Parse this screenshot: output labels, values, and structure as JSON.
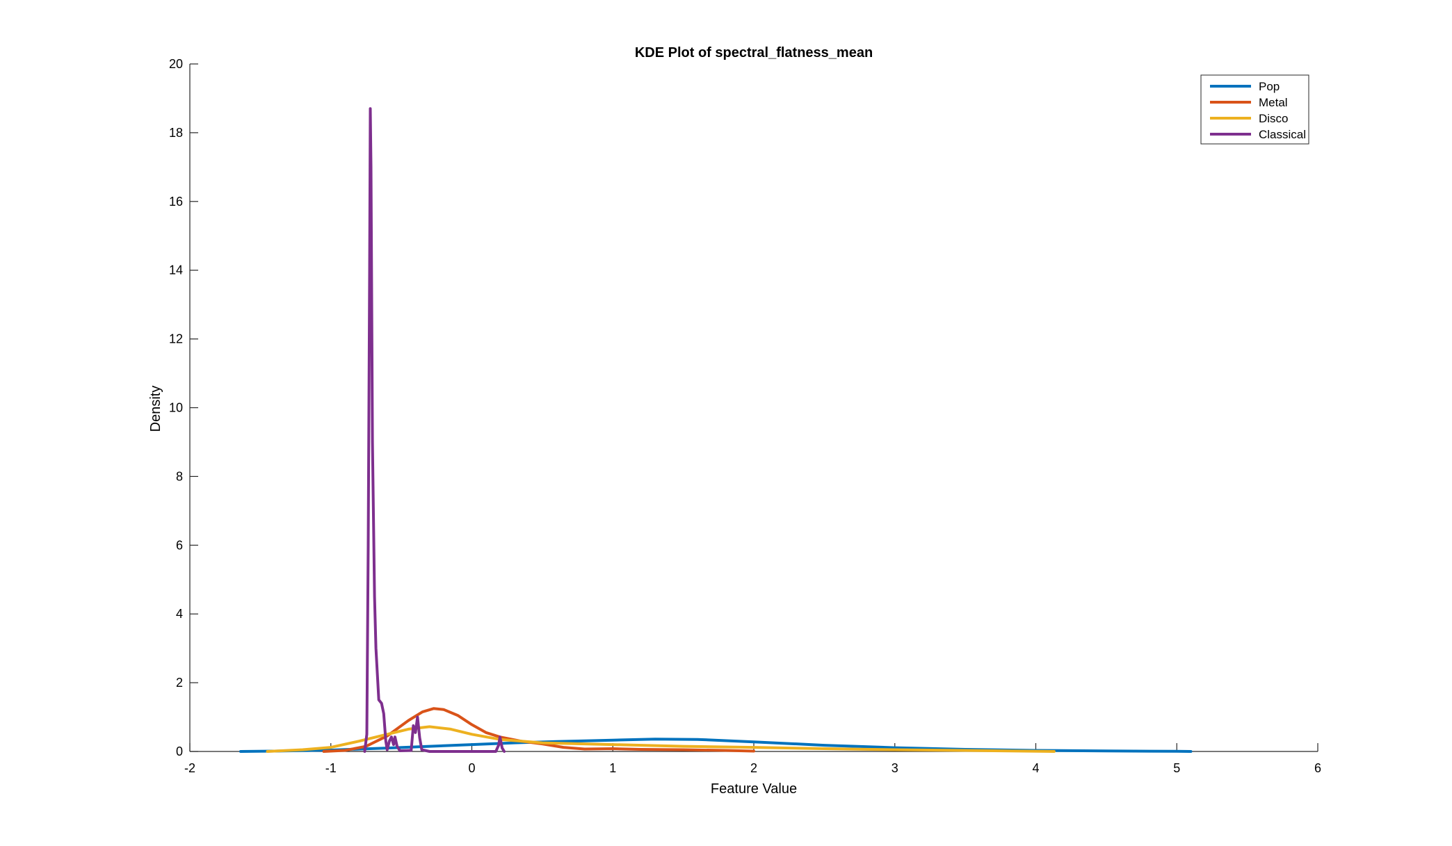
{
  "chart_data": {
    "type": "line",
    "title": "KDE Plot of spectral_flatness_mean",
    "xlabel": "Feature Value",
    "ylabel": "Density",
    "xlim": [
      -2,
      6
    ],
    "ylim": [
      0,
      20
    ],
    "xticks": [
      -2,
      -1,
      0,
      1,
      2,
      3,
      4,
      5,
      6
    ],
    "yticks": [
      0,
      2,
      4,
      6,
      8,
      10,
      12,
      14,
      16,
      18,
      20
    ],
    "grid": false,
    "legend_position": "top-right",
    "series": [
      {
        "name": "Pop",
        "color": "#0072BD",
        "points": [
          [
            -1.64,
            0.0
          ],
          [
            -1.4,
            0.01
          ],
          [
            -1.0,
            0.04
          ],
          [
            -0.6,
            0.1
          ],
          [
            -0.3,
            0.15
          ],
          [
            0.0,
            0.2
          ],
          [
            0.3,
            0.25
          ],
          [
            0.6,
            0.29
          ],
          [
            1.0,
            0.33
          ],
          [
            1.3,
            0.36
          ],
          [
            1.6,
            0.35
          ],
          [
            2.0,
            0.28
          ],
          [
            2.5,
            0.18
          ],
          [
            3.0,
            0.11
          ],
          [
            3.5,
            0.06
          ],
          [
            4.0,
            0.03
          ],
          [
            4.5,
            0.015
          ],
          [
            5.0,
            0.005
          ],
          [
            5.1,
            0.0
          ]
        ]
      },
      {
        "name": "Metal",
        "color": "#D95319",
        "points": [
          [
            -1.05,
            0.0
          ],
          [
            -0.9,
            0.03
          ],
          [
            -0.75,
            0.15
          ],
          [
            -0.6,
            0.45
          ],
          [
            -0.45,
            0.9
          ],
          [
            -0.35,
            1.15
          ],
          [
            -0.27,
            1.25
          ],
          [
            -0.2,
            1.22
          ],
          [
            -0.1,
            1.05
          ],
          [
            0.0,
            0.78
          ],
          [
            0.1,
            0.55
          ],
          [
            0.2,
            0.42
          ],
          [
            0.35,
            0.3
          ],
          [
            0.5,
            0.22
          ],
          [
            0.65,
            0.12
          ],
          [
            0.8,
            0.07
          ],
          [
            1.0,
            0.08
          ],
          [
            1.2,
            0.06
          ],
          [
            1.5,
            0.05
          ],
          [
            1.8,
            0.03
          ],
          [
            2.0,
            0.01
          ]
        ]
      },
      {
        "name": "Disco",
        "color": "#EDB120",
        "points": [
          [
            -1.45,
            0.0
          ],
          [
            -1.2,
            0.05
          ],
          [
            -1.0,
            0.12
          ],
          [
            -0.8,
            0.3
          ],
          [
            -0.6,
            0.5
          ],
          [
            -0.45,
            0.65
          ],
          [
            -0.3,
            0.72
          ],
          [
            -0.15,
            0.65
          ],
          [
            0.0,
            0.5
          ],
          [
            0.2,
            0.35
          ],
          [
            0.5,
            0.25
          ],
          [
            1.0,
            0.2
          ],
          [
            1.5,
            0.15
          ],
          [
            2.0,
            0.12
          ],
          [
            2.5,
            0.08
          ],
          [
            3.0,
            0.05
          ],
          [
            3.5,
            0.03
          ],
          [
            4.13,
            0.0
          ]
        ]
      },
      {
        "name": "Classical",
        "color": "#7E2F8E",
        "points": [
          [
            -0.76,
            0.0
          ],
          [
            -0.745,
            0.5
          ],
          [
            -0.735,
            6.0
          ],
          [
            -0.725,
            14.0
          ],
          [
            -0.72,
            18.7
          ],
          [
            -0.715,
            17.0
          ],
          [
            -0.705,
            9.0
          ],
          [
            -0.69,
            4.5
          ],
          [
            -0.68,
            3.0
          ],
          [
            -0.66,
            1.5
          ],
          [
            -0.64,
            1.4
          ],
          [
            -0.625,
            1.1
          ],
          [
            -0.61,
            0.3
          ],
          [
            -0.6,
            0.05
          ],
          [
            -0.585,
            0.3
          ],
          [
            -0.57,
            0.42
          ],
          [
            -0.555,
            0.2
          ],
          [
            -0.545,
            0.42
          ],
          [
            -0.53,
            0.15
          ],
          [
            -0.51,
            0.02
          ],
          [
            -0.43,
            0.03
          ],
          [
            -0.415,
            0.75
          ],
          [
            -0.4,
            0.55
          ],
          [
            -0.385,
            1.0
          ],
          [
            -0.37,
            0.4
          ],
          [
            -0.355,
            0.05
          ],
          [
            -0.3,
            0.0
          ],
          [
            0.0,
            0.0
          ],
          [
            0.17,
            0.0
          ],
          [
            0.19,
            0.18
          ],
          [
            0.2,
            0.42
          ],
          [
            0.215,
            0.1
          ],
          [
            0.23,
            0.0
          ]
        ]
      }
    ]
  }
}
